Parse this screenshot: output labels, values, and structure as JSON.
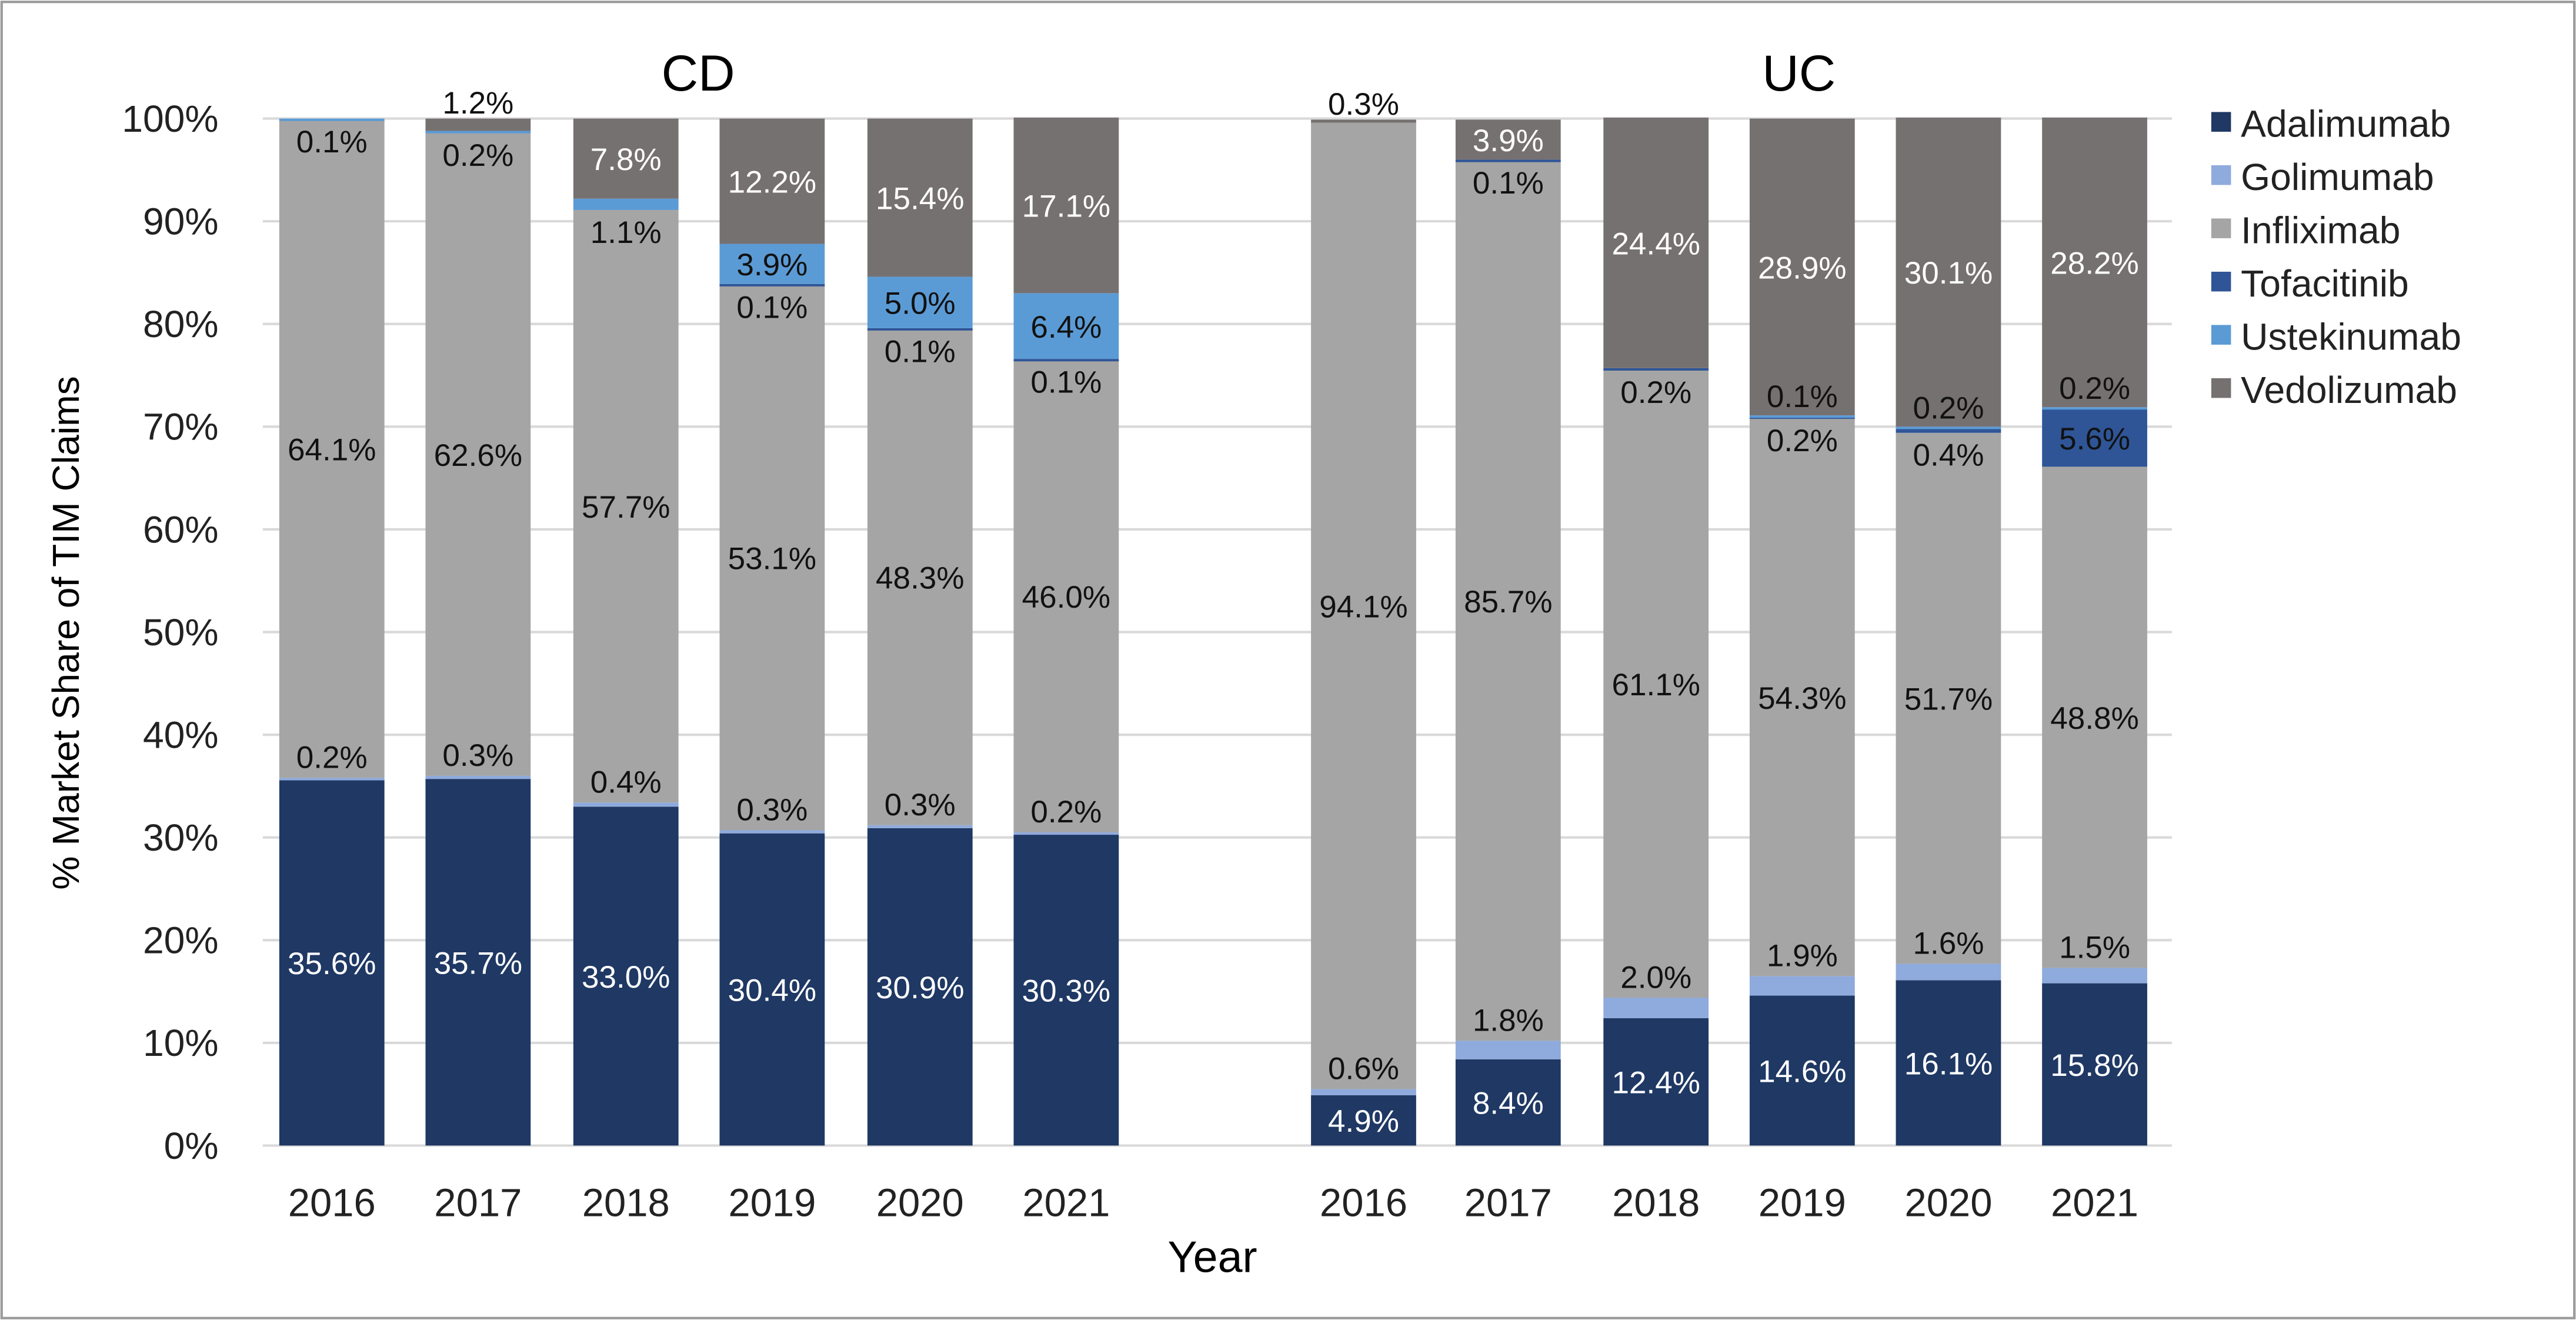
{
  "chart_data": {
    "type": "bar",
    "stacked": true,
    "ylabel": "% Market Share of TIM Claims",
    "xlabel": "Year",
    "ylim": [
      0,
      100
    ],
    "yticks": [
      "0%",
      "10%",
      "20%",
      "30%",
      "40%",
      "50%",
      "60%",
      "70%",
      "80%",
      "90%",
      "100%"
    ],
    "grid": true,
    "legend_position": "right",
    "series_names": [
      "Adalimumab",
      "Golimumab",
      "Infliximab",
      "Tofacitinib",
      "Ustekinumab",
      "Vedolizumab"
    ],
    "colors": {
      "Adalimumab": "#1f3864",
      "Golimumab": "#8faadc",
      "Infliximab": "#a5a5a5",
      "Tofacitinib": "#2f5597",
      "Ustekinumab": "#5b9bd5",
      "Vedolizumab": "#767171"
    },
    "panels": [
      {
        "title": "CD",
        "categories": [
          "2016",
          "2017",
          "2018",
          "2019",
          "2020",
          "2021"
        ],
        "series": [
          {
            "name": "Adalimumab",
            "values": [
              35.6,
              35.7,
              33.0,
              30.4,
              30.9,
              30.3
            ]
          },
          {
            "name": "Golimumab",
            "values": [
              0.2,
              0.3,
              0.4,
              0.3,
              0.3,
              0.2
            ]
          },
          {
            "name": "Infliximab",
            "values": [
              64.1,
              62.6,
              57.7,
              53.1,
              48.3,
              46.0
            ]
          },
          {
            "name": "Tofacitinib",
            "values": [
              null,
              null,
              null,
              0.1,
              0.1,
              0.1
            ]
          },
          {
            "name": "Ustekinumab",
            "values": [
              0.1,
              0.2,
              1.1,
              3.9,
              5.0,
              6.4
            ]
          },
          {
            "name": "Vedolizumab",
            "values": [
              null,
              1.2,
              7.8,
              12.2,
              15.4,
              17.1
            ]
          }
        ]
      },
      {
        "title": "UC",
        "categories": [
          "2016",
          "2017",
          "2018",
          "2019",
          "2020",
          "2021"
        ],
        "series": [
          {
            "name": "Adalimumab",
            "values": [
              4.9,
              8.4,
              12.4,
              14.6,
              16.1,
              15.8
            ]
          },
          {
            "name": "Golimumab",
            "values": [
              0.6,
              1.8,
              2.0,
              1.9,
              1.6,
              1.5
            ]
          },
          {
            "name": "Infliximab",
            "values": [
              94.1,
              85.7,
              61.1,
              54.3,
              51.7,
              48.8
            ]
          },
          {
            "name": "Tofacitinib",
            "values": [
              null,
              0.1,
              0.2,
              0.2,
              0.4,
              5.6
            ]
          },
          {
            "name": "Ustekinumab",
            "values": [
              null,
              null,
              null,
              0.1,
              0.2,
              0.2
            ]
          },
          {
            "name": "Vedolizumab",
            "values": [
              0.3,
              3.9,
              24.4,
              28.9,
              30.1,
              28.2
            ]
          }
        ]
      }
    ]
  }
}
